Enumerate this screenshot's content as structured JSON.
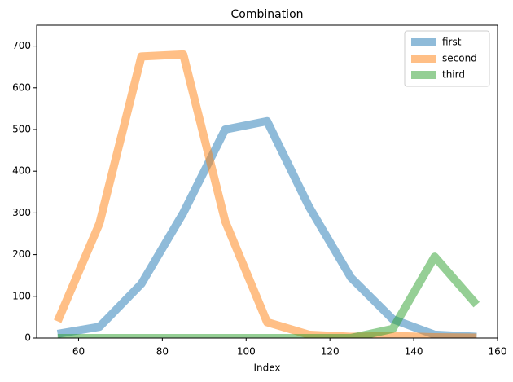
{
  "chart_data": {
    "type": "line",
    "title": "Combination",
    "x_label": "Index",
    "x": [
      55,
      65,
      75,
      85,
      95,
      105,
      115,
      125,
      135,
      145,
      155
    ],
    "series": [
      {
        "name": "first",
        "color": "#1f77b4",
        "values": [
          10,
          27,
          130,
          300,
          500,
          520,
          315,
          145,
          45,
          8,
          3
        ]
      },
      {
        "name": "second",
        "color": "#ff7f0e",
        "values": [
          40,
          275,
          675,
          680,
          280,
          38,
          8,
          3,
          5,
          2,
          1
        ]
      },
      {
        "name": "third",
        "color": "#2ca02c",
        "values": [
          0,
          0,
          0,
          0,
          0,
          0,
          0,
          0,
          22,
          195,
          80
        ]
      }
    ],
    "xlim": [
      50,
      160
    ],
    "ylim": [
      0,
      750
    ],
    "xticks": [
      60,
      80,
      100,
      120,
      140,
      160
    ],
    "yticks": [
      0,
      100,
      200,
      300,
      400,
      500,
      600,
      700
    ],
    "grid": false,
    "legend": "upper right"
  }
}
